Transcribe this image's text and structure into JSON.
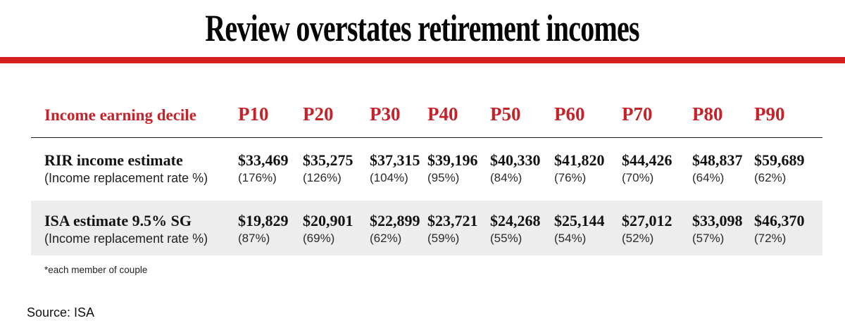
{
  "title": "Review overstates retirement incomes",
  "colors": {
    "accent_red_bar": "#d4201f",
    "header_red_text": "#c6222a",
    "row_band_gray": "#ededed"
  },
  "chart_data": {
    "type": "table",
    "title": "Review overstates retirement incomes",
    "header_label": "Income earning decile",
    "columns": [
      "P10",
      "P20",
      "P30",
      "P40",
      "P50",
      "P60",
      "P70",
      "P80",
      "P90"
    ],
    "rows": [
      {
        "label": "RIR income estimate",
        "sublabel": "(Income replacement rate %)",
        "values": [
          "$33,469",
          "$35,275",
          "$37,315",
          "$39,196",
          "$40,330",
          "$41,820",
          "$44,426",
          "$48,837",
          "$59,689"
        ],
        "percents": [
          "(176%)",
          "(126%)",
          "(104%)",
          "(95%)",
          "(84%)",
          "(76%)",
          "(70%)",
          "(64%)",
          "(62%)"
        ]
      },
      {
        "label": "ISA estimate 9.5% SG",
        "sublabel": "(Income replacement rate %)",
        "values": [
          "$19,829",
          "$20,901",
          "$22,899",
          "$23,721",
          "$24,268",
          "$25,144",
          "$27,012",
          "$33,098",
          "$46,370"
        ],
        "percents": [
          "(87%)",
          "(69%)",
          "(62%)",
          "(59%)",
          "(55%)",
          "(54%)",
          "(52%)",
          "(57%)",
          "(72%)"
        ]
      }
    ],
    "footnote": "*each member of couple",
    "source": "Source: ISA"
  }
}
